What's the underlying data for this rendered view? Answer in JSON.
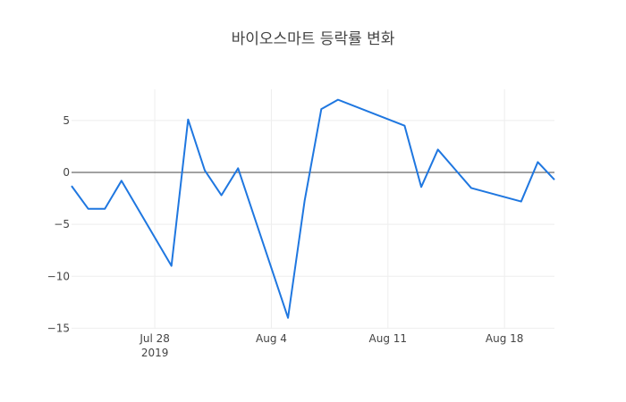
{
  "chart_data": {
    "type": "line",
    "title": "바이오스마트 등락률 변화",
    "xlabel": "",
    "ylabel": "",
    "x_range": [
      "2019-07-23",
      "2019-08-21"
    ],
    "ylim": [
      -15,
      8
    ],
    "y_ticks": [
      5,
      0,
      -5,
      -10,
      -15
    ],
    "y_tick_labels": [
      "5",
      "0",
      "−5",
      "−10",
      "−15"
    ],
    "x_ticks": [
      {
        "date": "2019-07-28",
        "label": "Jul 28",
        "sublabel": "2019"
      },
      {
        "date": "2019-08-04",
        "label": "Aug 4",
        "sublabel": ""
      },
      {
        "date": "2019-08-11",
        "label": "Aug 11",
        "sublabel": ""
      },
      {
        "date": "2019-08-18",
        "label": "Aug 18",
        "sublabel": ""
      }
    ],
    "grid": true,
    "zero_line": true,
    "line_color": "#1f77e0",
    "series": [
      {
        "x": [
          "2019-07-23",
          "2019-07-24",
          "2019-07-25",
          "2019-07-26",
          "2019-07-29",
          "2019-07-30",
          "2019-07-31",
          "2019-08-01",
          "2019-08-02",
          "2019-08-05",
          "2019-08-06",
          "2019-08-07",
          "2019-08-08",
          "2019-08-12",
          "2019-08-13",
          "2019-08-14",
          "2019-08-16",
          "2019-08-19",
          "2019-08-20",
          "2019-08-21"
        ],
        "values": [
          -1.3,
          -3.5,
          -3.5,
          -0.8,
          -9.0,
          5.1,
          0.2,
          -2.2,
          0.4,
          -14.0,
          -2.7,
          6.1,
          7.0,
          4.5,
          -1.4,
          2.2,
          -1.5,
          -2.8,
          1.0,
          -0.7
        ]
      }
    ]
  }
}
